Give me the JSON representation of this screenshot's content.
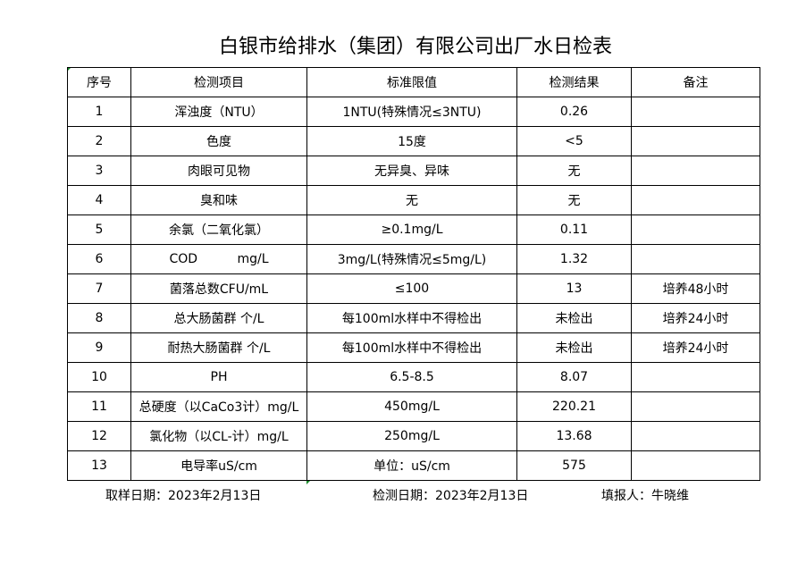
{
  "title": "白银市给排水（集团）有限公司出厂水日检表",
  "headers": [
    "序号",
    "检测项目",
    "标准限值",
    "检测结果",
    "备注"
  ],
  "rows": [
    [
      "1",
      "浑浊度（NTU）",
      "1NTU(特殊情况≤3NTU)",
      "0.26",
      ""
    ],
    [
      "2",
      "色度",
      "15度",
      "<5",
      ""
    ],
    [
      "3",
      "肉眼可见物",
      "无异臭、异味",
      "无",
      ""
    ],
    [
      "4",
      "臭和味",
      "无",
      "无",
      ""
    ],
    [
      "5",
      "余氯（二氧化氯）",
      "≥0.1mg/L",
      "0.11",
      ""
    ],
    [
      "6",
      "COD          mg/L",
      "3mg/L(特殊情况≤5mg/L)",
      "1.32",
      ""
    ],
    [
      "7",
      "菌落总数CFU/mL",
      "≤100",
      "13",
      "培养48小时"
    ],
    [
      "8",
      "总大肠菌群 个/L",
      "每100ml水样中不得检出",
      "未检出",
      "培养24小时"
    ],
    [
      "9",
      "耐热大肠菌群 个/L",
      "每100ml水样中不得检出",
      "未检出",
      "培养24小时"
    ],
    [
      "10",
      "PH",
      "6.5-8.5",
      "8.07",
      ""
    ],
    [
      "11",
      "总硬度（以CaCo3计）mg/L",
      "450mg/L",
      "220.21",
      ""
    ],
    [
      "12",
      "氯化物（以CL-计）mg/L",
      "250mg/L",
      "13.68",
      ""
    ],
    [
      "13",
      "电导率uS/cm",
      "单位：uS/cm",
      "575",
      ""
    ]
  ],
  "footer": {
    "sample_date": "取样日期：2023年2月13日",
    "test_date": "检测日期：2023年2月13日",
    "reporter": "填报人：牛晓维"
  }
}
